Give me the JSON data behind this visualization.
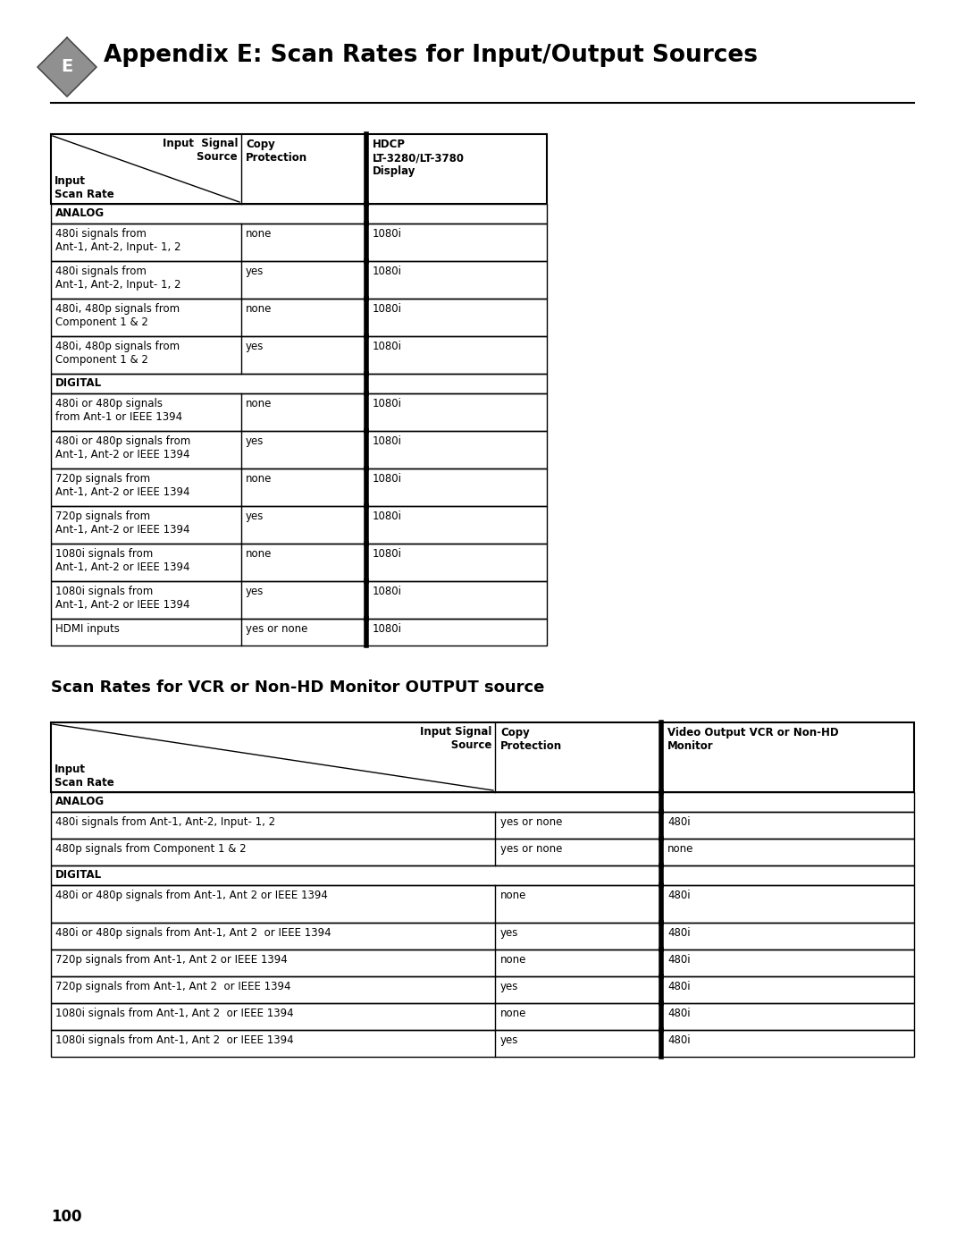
{
  "page_title": "Appendix E: Scan Rates for Input/Output Sources",
  "page_number": "100",
  "section2_title": "Scan Rates for VCR or Non-HD Monitor OUTPUT source",
  "table1_rows": [
    {
      "type": "header"
    },
    {
      "type": "section",
      "label": "ANALOG"
    },
    {
      "type": "data",
      "col1": "480i signals from\nAnt-1, Ant-2, Input- 1, 2",
      "col2": "none",
      "col3": "1080i"
    },
    {
      "type": "data",
      "col1": "480i signals from\nAnt-1, Ant-2, Input- 1, 2",
      "col2": "yes",
      "col3": "1080i"
    },
    {
      "type": "data",
      "col1": "480i, 480p signals from\nComponent 1 & 2",
      "col2": "none",
      "col3": "1080i"
    },
    {
      "type": "data",
      "col1": "480i, 480p signals from\nComponent 1 & 2",
      "col2": "yes",
      "col3": "1080i"
    },
    {
      "type": "section",
      "label": "DIGITAL"
    },
    {
      "type": "data",
      "col1": "480i or 480p signals\nfrom Ant-1 or IEEE 1394",
      "col2": "none",
      "col3": "1080i"
    },
    {
      "type": "data",
      "col1": "480i or 480p signals from\nAnt-1, Ant-2 or IEEE 1394",
      "col2": "yes",
      "col3": "1080i"
    },
    {
      "type": "data",
      "col1": "720p signals from\nAnt-1, Ant-2 or IEEE 1394",
      "col2": "none",
      "col3": "1080i"
    },
    {
      "type": "data",
      "col1": "720p signals from\nAnt-1, Ant-2 or IEEE 1394",
      "col2": "yes",
      "col3": "1080i"
    },
    {
      "type": "data",
      "col1": "1080i signals from\nAnt-1, Ant-2 or IEEE 1394",
      "col2": "none",
      "col3": "1080i"
    },
    {
      "type": "data",
      "col1": "1080i signals from\nAnt-1, Ant-2 or IEEE 1394",
      "col2": "yes",
      "col3": "1080i"
    },
    {
      "type": "data1",
      "col1": "HDMI inputs",
      "col2": "yes or none",
      "col3": "1080i"
    }
  ],
  "table2_rows": [
    {
      "type": "header"
    },
    {
      "type": "section",
      "label": "ANALOG"
    },
    {
      "type": "data",
      "col1": "480i signals from Ant-1, Ant-2, Input- 1, 2",
      "col2": "yes or none",
      "col3": "480i"
    },
    {
      "type": "data",
      "col1": "480p signals from Component 1 & 2",
      "col2": "yes or none",
      "col3": "none"
    },
    {
      "type": "section",
      "label": "DIGITAL"
    },
    {
      "type": "data2",
      "col1": "480i or 480p signals from Ant-1, Ant 2 or IEEE 1394",
      "col2": "none",
      "col3": "480i"
    },
    {
      "type": "data",
      "col1": "480i or 480p signals from Ant-1, Ant 2  or IEEE 1394",
      "col2": "yes",
      "col3": "480i"
    },
    {
      "type": "data",
      "col1": "720p signals from Ant-1, Ant 2 or IEEE 1394",
      "col2": "none",
      "col3": "480i"
    },
    {
      "type": "data",
      "col1": "720p signals from Ant-1, Ant 2  or IEEE 1394",
      "col2": "yes",
      "col3": "480i"
    },
    {
      "type": "data",
      "col1": "1080i signals from Ant-1, Ant 2  or IEEE 1394",
      "col2": "none",
      "col3": "480i"
    },
    {
      "type": "data",
      "col1": "1080i signals from Ant-1, Ant 2  or IEEE 1394",
      "col2": "yes",
      "col3": "480i"
    }
  ],
  "bg_color": "#ffffff"
}
